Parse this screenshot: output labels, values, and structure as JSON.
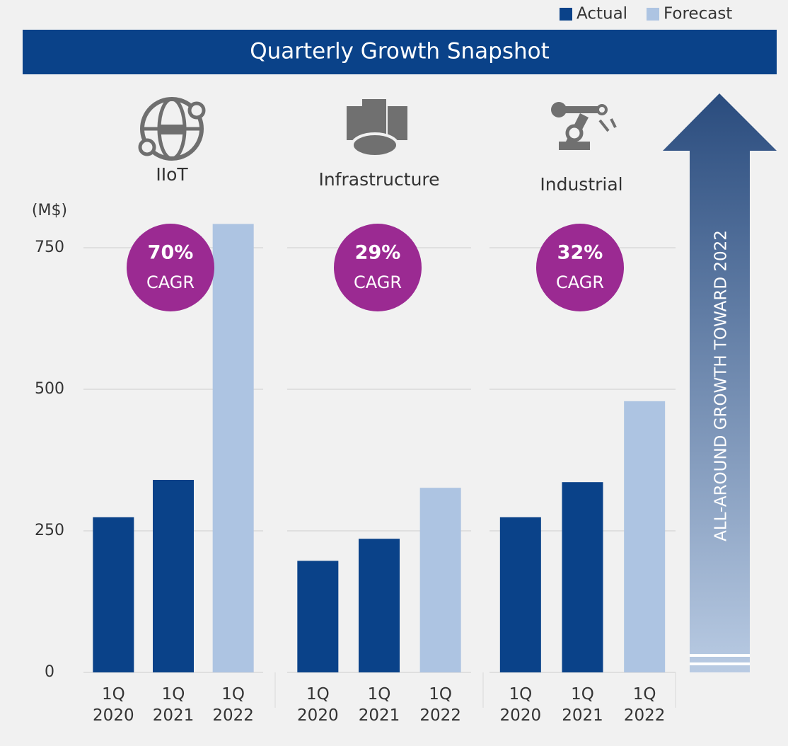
{
  "title": "Quarterly Growth Snapshot",
  "legend": [
    {
      "name": "Actual",
      "color": "#0a4289"
    },
    {
      "name": "Forecast",
      "color": "#adc4e2"
    }
  ],
  "y_axis_label": "(M$)",
  "arrow_text": "ALL-AROUND GROWTH TOWARD 2022",
  "chart_data": [
    {
      "type": "bar",
      "title": "IIoT",
      "categories": [
        "1Q\n2020",
        "1Q\n2021",
        "1Q\n2022"
      ],
      "values": [
        274,
        340,
        792
      ],
      "colors": [
        "#0a4289",
        "#0a4289",
        "#adc4e2"
      ],
      "cagr": "70%",
      "cagr_label": "CAGR",
      "ylim": [
        0,
        800
      ],
      "yticks": [
        0,
        250,
        500,
        750
      ],
      "grid": true
    },
    {
      "type": "bar",
      "title": "Infrastructure",
      "categories": [
        "1Q\n2020",
        "1Q\n2021",
        "1Q\n2022"
      ],
      "values": [
        197,
        236,
        326
      ],
      "colors": [
        "#0a4289",
        "#0a4289",
        "#adc4e2"
      ],
      "cagr": "29%",
      "cagr_label": "CAGR",
      "ylim": [
        0,
        800
      ],
      "yticks": [
        0,
        250,
        500,
        750
      ],
      "grid": true
    },
    {
      "type": "bar",
      "title": "Industrial",
      "categories": [
        "1Q\n2020",
        "1Q\n2021",
        "1Q\n2022"
      ],
      "values": [
        274,
        336,
        479
      ],
      "colors": [
        "#0a4289",
        "#0a4289",
        "#adc4e2"
      ],
      "cagr": "32%",
      "cagr_label": "CAGR",
      "ylim": [
        0,
        800
      ],
      "yticks": [
        0,
        250,
        500,
        750
      ],
      "grid": true
    }
  ]
}
